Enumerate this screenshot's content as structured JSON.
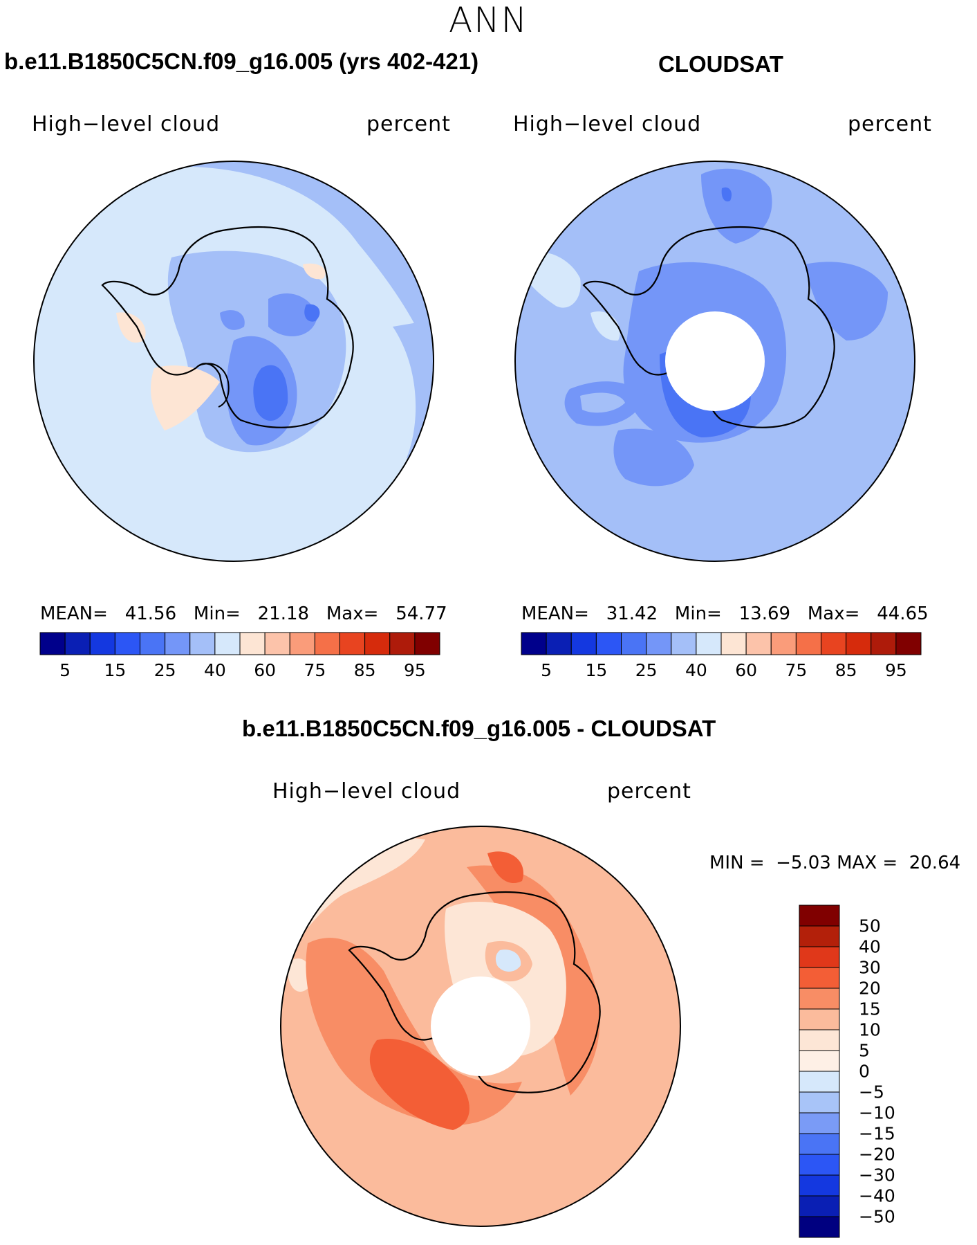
{
  "figure": {
    "season": "ANN",
    "panels": [
      {
        "title": "b.e11.B1850C5CN.f09_g16.005 (yrs 402-421)",
        "variable": "High−level cloud",
        "units": "percent",
        "stats": {
          "mean_label": "MEAN=",
          "mean": "41.56",
          "min_label": "Min=",
          "min": "21.18",
          "max_label": "Max=",
          "max": "54.77"
        },
        "has_polar_hole": false
      },
      {
        "title": "CLOUDSAT",
        "variable": "High−level cloud",
        "units": "percent",
        "stats": {
          "mean_label": "MEAN=",
          "mean": "31.42",
          "min_label": "Min=",
          "min": "13.69",
          "max_label": "Max=",
          "max": "44.65"
        },
        "has_polar_hole": true
      },
      {
        "title": "b.e11.B1850C5CN.f09_g16.005 - CLOUDSAT",
        "variable": "High−level cloud",
        "units": "percent",
        "stats": {
          "min_label": "MIN =",
          "min": "−5.03",
          "max_label": "MAX =",
          "max": "20.64"
        },
        "has_polar_hole": true
      }
    ]
  },
  "colorbars": {
    "absolute": {
      "colors": [
        "#00008b",
        "#0a1fb4",
        "#1438e0",
        "#2c56f5",
        "#4a74f5",
        "#7496f8",
        "#a4bff8",
        "#d6e8fb",
        "#fde5d4",
        "#fcc3aa",
        "#fa9c7a",
        "#f57048",
        "#e84420",
        "#d62b0c",
        "#ae1b0a",
        "#800000"
      ],
      "tick_labels": [
        "5",
        "15",
        "25",
        "40",
        "60",
        "75",
        "85",
        "95"
      ]
    },
    "difference": {
      "colors": [
        "#800000",
        "#b3200a",
        "#e0381a",
        "#f35e36",
        "#f88d65",
        "#fbbb9c",
        "#fde6d6",
        "#d6e8fb",
        "#a8c4f8",
        "#7a9bf6",
        "#4a74f5",
        "#2c56f5",
        "#1438e0",
        "#0a1fb4",
        "#000080"
      ],
      "tick_labels": [
        "50",
        "40",
        "30",
        "20",
        "15",
        "10",
        "5",
        "0",
        "−5",
        "−10",
        "−15",
        "−20",
        "−30",
        "−40",
        "−50"
      ]
    }
  }
}
